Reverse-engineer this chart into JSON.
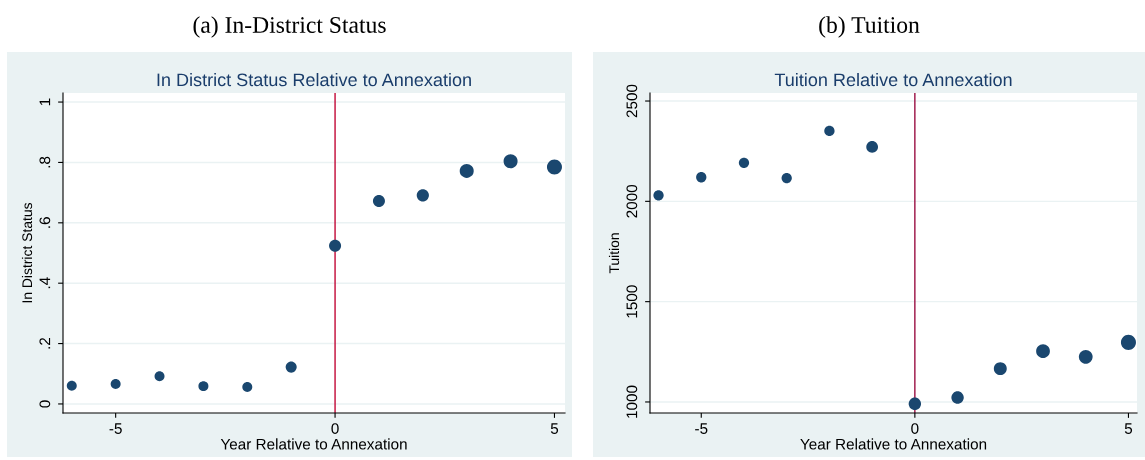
{
  "chart_data": [
    {
      "type": "bubble",
      "title": "(a) In-District Status",
      "subtitle": "In District Status Relative to Annexation",
      "xlabel": "Year Relative to Annexation",
      "ylabel": "In District Status",
      "x": [
        -6,
        -5,
        -4,
        -3,
        -2,
        -1,
        0,
        1,
        2,
        3,
        4,
        5
      ],
      "series": [
        {
          "color": "#1a476f",
          "values": [
            0.06,
            0.066,
            0.092,
            0.059,
            0.056,
            0.122,
            0.524,
            0.672,
            0.691,
            0.772,
            0.804,
            0.785
          ],
          "sizes": [
            0.44,
            0.44,
            0.44,
            0.44,
            0.44,
            0.54,
            0.64,
            0.64,
            0.66,
            0.87,
            0.87,
            1
          ]
        }
      ],
      "xlim": [
        -6.2,
        5.24
      ],
      "xticks": [
        -5,
        0,
        5
      ],
      "ylim": [
        -0.03,
        1.03
      ],
      "yticks": [
        {
          "value": 0,
          "label": "0"
        },
        {
          "value": 0.2,
          "label": ".2"
        },
        {
          "value": 0.4,
          "label": ".4"
        },
        {
          "value": 0.6,
          "label": ".6"
        },
        {
          "value": 0.8,
          "label": ".8"
        },
        {
          "value": 1,
          "label": "1"
        }
      ],
      "ref_lines": [
        {
          "axis": "x",
          "value": 0,
          "label": null,
          "color": "#c10534"
        }
      ],
      "grid": "y",
      "legend": false
    },
    {
      "type": "bubble",
      "title": "(b) Tuition",
      "subtitle": "Tuition Relative to Annexation",
      "xlabel": "Year Relative to Annexation",
      "ylabel": "Tuition",
      "x": [
        -6,
        -5,
        -4,
        -3,
        -2,
        -1,
        0,
        1,
        2,
        3,
        4,
        5
      ],
      "series": [
        {
          "color": "#1a476f",
          "values": [
            2030,
            2120,
            2192,
            2116,
            2351,
            2271,
            991,
            1022,
            1166,
            1253,
            1225,
            1297
          ],
          "sizes": [
            0.47,
            0.47,
            0.47,
            0.47,
            0.47,
            0.61,
            0.68,
            0.68,
            0.74,
            0.84,
            0.84,
            1
          ]
        }
      ],
      "xlim": [
        -6.2,
        5.2
      ],
      "xticks": [
        -5,
        0,
        5
      ],
      "ylim": [
        945,
        2540
      ],
      "yticks": [
        1000,
        1500,
        2000,
        2500
      ],
      "ref_lines": [
        {
          "axis": "x",
          "value": 0,
          "label": null,
          "color": "#990c41"
        }
      ],
      "grid": "y",
      "legend": false
    }
  ]
}
